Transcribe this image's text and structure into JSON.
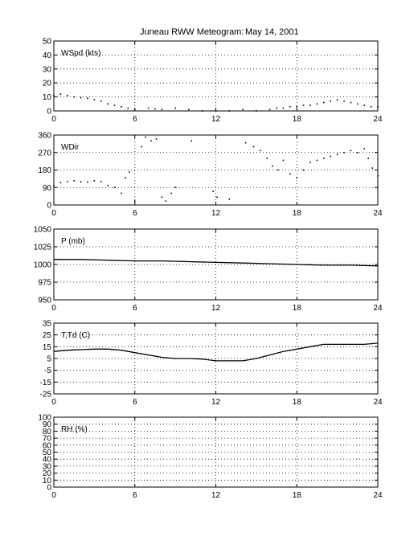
{
  "figure": {
    "title_left": "Juneau RWW Meteogram:",
    "title_right": "May 14, 2001"
  },
  "chart_data": [
    {
      "type": "scatter",
      "label": "WSpd (kts)",
      "xlim": [
        0,
        24
      ],
      "ylim": [
        0,
        50
      ],
      "xticks": [
        0,
        6,
        12,
        18,
        24
      ],
      "yticks": [
        0,
        10,
        20,
        30,
        40,
        50
      ],
      "grid": true,
      "series": [
        {
          "x": [
            0,
            0.5,
            1,
            1.5,
            2,
            2.5,
            3,
            3.5,
            4,
            4.5,
            5,
            5.5,
            6,
            7,
            7.5,
            8,
            9,
            10,
            11,
            12,
            13,
            14,
            15,
            16,
            16.5,
            17,
            17.5,
            18,
            18.5,
            19,
            19.5,
            20,
            20.5,
            21,
            21.5,
            22,
            22.5,
            23,
            23.5,
            24
          ],
          "y": [
            11,
            12,
            11,
            10,
            9.5,
            9,
            8,
            7,
            5,
            4,
            3,
            2,
            1,
            2,
            1.5,
            1,
            2,
            1,
            0,
            0,
            0,
            1,
            0,
            1,
            2,
            2,
            3,
            3,
            4,
            4,
            5,
            6,
            7,
            8,
            7,
            6,
            5,
            4,
            3,
            3
          ]
        }
      ]
    },
    {
      "type": "scatter",
      "label": "WDir",
      "xlim": [
        0,
        24
      ],
      "ylim": [
        0,
        360
      ],
      "xticks": [
        0,
        6,
        12,
        18,
        24
      ],
      "yticks": [
        0,
        90,
        180,
        270,
        360
      ],
      "grid": true,
      "series": [
        {
          "x": [
            0,
            0.5,
            1,
            1.5,
            2,
            2.5,
            3,
            3.5,
            4,
            4.5,
            5,
            5.3,
            5.6,
            6,
            6.5,
            6.8,
            7.2,
            7.6,
            8,
            8.3,
            8.7,
            9,
            10.2,
            11.8,
            12.1,
            13,
            14.2,
            14.8,
            15.3,
            15.8,
            16.2,
            16.6,
            17,
            17.5,
            18,
            18.5,
            19,
            19.5,
            20,
            20.5,
            21,
            21.5,
            22,
            22.5,
            23,
            23.3,
            23.6,
            24
          ],
          "y": [
            100,
            115,
            120,
            125,
            120,
            118,
            125,
            120,
            100,
            90,
            60,
            140,
            170,
            20,
            300,
            350,
            330,
            340,
            40,
            20,
            60,
            90,
            330,
            70,
            40,
            30,
            320,
            300,
            280,
            240,
            200,
            180,
            230,
            160,
            140,
            180,
            220,
            230,
            240,
            250,
            260,
            270,
            280,
            270,
            290,
            240,
            190,
            150
          ]
        }
      ]
    },
    {
      "type": "line",
      "label": "P (mb)",
      "xlim": [
        0,
        24
      ],
      "ylim": [
        950,
        1050
      ],
      "xticks": [
        0,
        6,
        12,
        18,
        24
      ],
      "yticks": [
        950,
        975,
        1000,
        1025,
        1050
      ],
      "grid": true,
      "series": [
        {
          "x": [
            0,
            2,
            4,
            6,
            8,
            10,
            12,
            14,
            16,
            18,
            20,
            22,
            24
          ],
          "y": [
            1007,
            1007,
            1006,
            1005,
            1005,
            1004,
            1003,
            1002,
            1001,
            1000,
            999,
            999,
            998
          ]
        }
      ]
    },
    {
      "type": "line",
      "label": "T,Td (C)",
      "xlim": [
        0,
        24
      ],
      "ylim": [
        -25,
        35
      ],
      "xticks": [
        0,
        6,
        12,
        18,
        24
      ],
      "yticks": [
        -25,
        -15,
        -5,
        5,
        15,
        25,
        35
      ],
      "grid": true,
      "series": [
        {
          "x": [
            0,
            1,
            2,
            3,
            4,
            5,
            6,
            7,
            8,
            9,
            10,
            11,
            12,
            13,
            14,
            15,
            16,
            17,
            18,
            19,
            20,
            21,
            22,
            23,
            24
          ],
          "y": [
            11,
            12,
            12.5,
            13,
            13,
            12,
            10,
            8,
            6,
            5,
            5,
            4.5,
            3,
            3,
            3,
            5,
            8,
            11,
            13,
            15,
            17,
            17,
            17,
            17,
            18
          ]
        }
      ]
    },
    {
      "type": "line",
      "label": "RH (%)",
      "xlim": [
        0,
        24
      ],
      "ylim": [
        0,
        100
      ],
      "xticks": [
        0,
        6,
        12,
        18,
        24
      ],
      "yticks": [
        0,
        10,
        20,
        30,
        40,
        50,
        60,
        70,
        80,
        90,
        100
      ],
      "grid": true,
      "series": []
    }
  ],
  "style": {
    "axis_color": "#000000",
    "line_color": "#000000",
    "background": "#ffffff"
  }
}
